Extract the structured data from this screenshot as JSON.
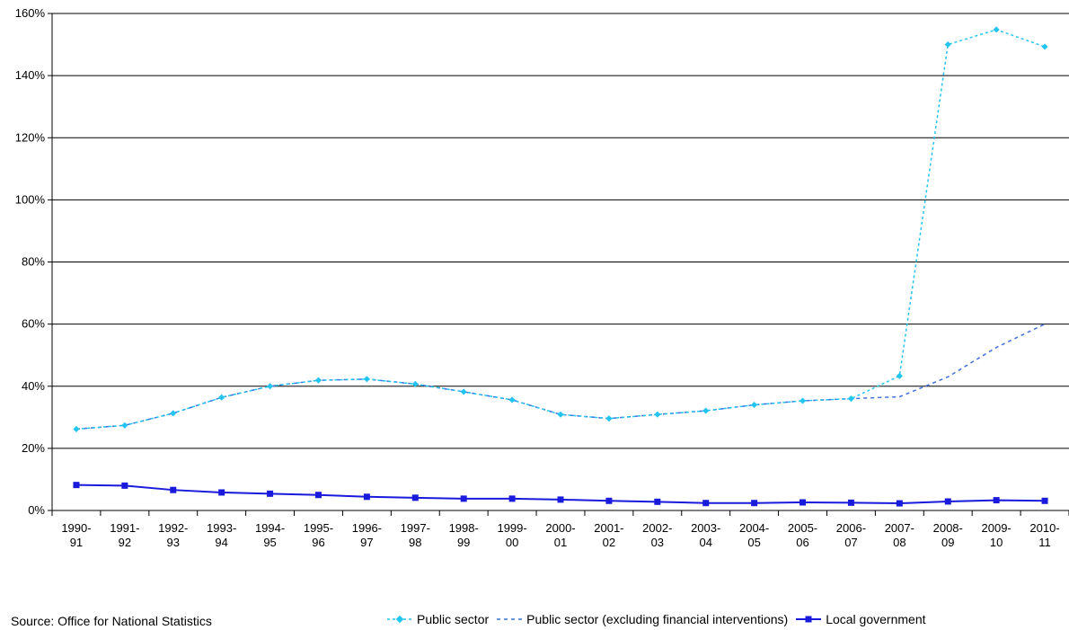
{
  "source": "Source: Office for National Statistics",
  "colors": {
    "public_sector": "#22c4f0",
    "public_sector_ex": "#3f6fe0",
    "local_government": "#1a1adc",
    "grid": "#000000"
  },
  "chart_data": {
    "type": "line",
    "title": "",
    "xlabel": "",
    "ylabel": "",
    "ylim": [
      0,
      160
    ],
    "yticks": [
      "0%",
      "20%",
      "40%",
      "60%",
      "80%",
      "100%",
      "120%",
      "140%",
      "160%"
    ],
    "grid": true,
    "legend_position": "bottom",
    "categories": [
      [
        "1990-",
        "91"
      ],
      [
        "1991-",
        "92"
      ],
      [
        "1992-",
        "93"
      ],
      [
        "1993-",
        "94"
      ],
      [
        "1994-",
        "95"
      ],
      [
        "1995-",
        "96"
      ],
      [
        "1996-",
        "97"
      ],
      [
        "1997-",
        "98"
      ],
      [
        "1998-",
        "99"
      ],
      [
        "1999-",
        "00"
      ],
      [
        "2000-",
        "01"
      ],
      [
        "2001-",
        "02"
      ],
      [
        "2002-",
        "03"
      ],
      [
        "2003-",
        "04"
      ],
      [
        "2004-",
        "05"
      ],
      [
        "2005-",
        "06"
      ],
      [
        "2006-",
        "07"
      ],
      [
        "2007-",
        "08"
      ],
      [
        "2008-",
        "09"
      ],
      [
        "2009-",
        "10"
      ],
      [
        "2010-",
        "11"
      ]
    ],
    "series": [
      {
        "name": "Public sector",
        "style": "dotted-marker",
        "values": [
          26.2,
          27.4,
          31.3,
          36.4,
          40.0,
          41.9,
          42.3,
          40.7,
          38.2,
          35.6,
          30.9,
          29.6,
          30.9,
          32.1,
          34.0,
          35.3,
          36.0,
          43.3,
          150.0,
          154.8,
          149.3
        ]
      },
      {
        "name": "Public sector (excluding financial interventions)",
        "style": "dashed",
        "values": [
          26.2,
          27.4,
          31.3,
          36.4,
          40.0,
          41.9,
          42.3,
          40.7,
          38.2,
          35.6,
          30.9,
          29.6,
          30.9,
          32.1,
          34.0,
          35.3,
          36.0,
          36.6,
          43.0,
          52.5,
          60.0
        ]
      },
      {
        "name": "Local government",
        "style": "solid-marker",
        "values": [
          8.2,
          8.0,
          6.6,
          5.8,
          5.4,
          5.0,
          4.4,
          4.1,
          3.8,
          3.8,
          3.5,
          3.1,
          2.8,
          2.4,
          2.4,
          2.6,
          2.5,
          2.3,
          2.9,
          3.3,
          3.1
        ]
      }
    ]
  }
}
